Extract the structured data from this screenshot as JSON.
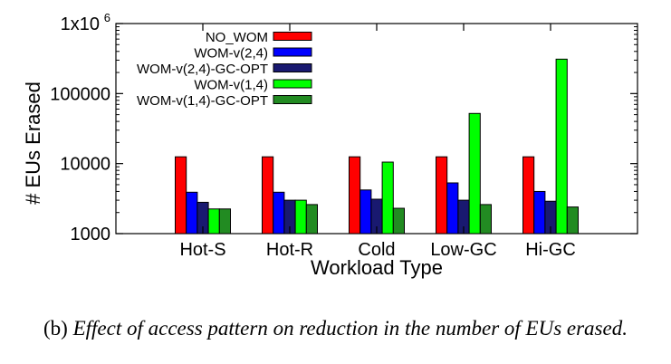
{
  "chart_data": {
    "type": "bar",
    "yscale": "log",
    "ylim": [
      1000,
      1000000
    ],
    "yticks": [
      {
        "value": 1000,
        "label": "1000"
      },
      {
        "value": 10000,
        "label": "10000"
      },
      {
        "value": 100000,
        "label": "100000"
      }
    ],
    "ytop_label": {
      "base": "1x10",
      "exp": "6"
    },
    "xlabel": "Workload Type",
    "ylabel": "# EUs Erased",
    "categories": [
      "Hot-S",
      "Hot-R",
      "Cold",
      "Low-GC",
      "Hi-GC"
    ],
    "series": [
      {
        "name": "NO_WOM",
        "color": "#ff0000",
        "values": [
          12500,
          12500,
          12500,
          12500,
          12500
        ]
      },
      {
        "name": "WOM-v(2,4)",
        "color": "#0000ff",
        "values": [
          3900,
          3900,
          4200,
          5300,
          4000
        ]
      },
      {
        "name": "WOM-v(2,4)-GC-OPT",
        "color": "#191970",
        "values": [
          2800,
          3000,
          3100,
          3000,
          2900
        ]
      },
      {
        "name": "WOM-v(1,4)",
        "color": "#00ff00",
        "values": [
          2250,
          3000,
          10500,
          52000,
          310000
        ]
      },
      {
        "name": "WOM-v(1,4)-GC-OPT",
        "color": "#228b22",
        "values": [
          2250,
          2600,
          2300,
          2600,
          2400
        ]
      }
    ],
    "legend_position": "top-left",
    "grid": false
  },
  "caption": {
    "prefix": "(b)",
    "text": "Effect of access pattern on reduction in the number of EUs erased."
  }
}
